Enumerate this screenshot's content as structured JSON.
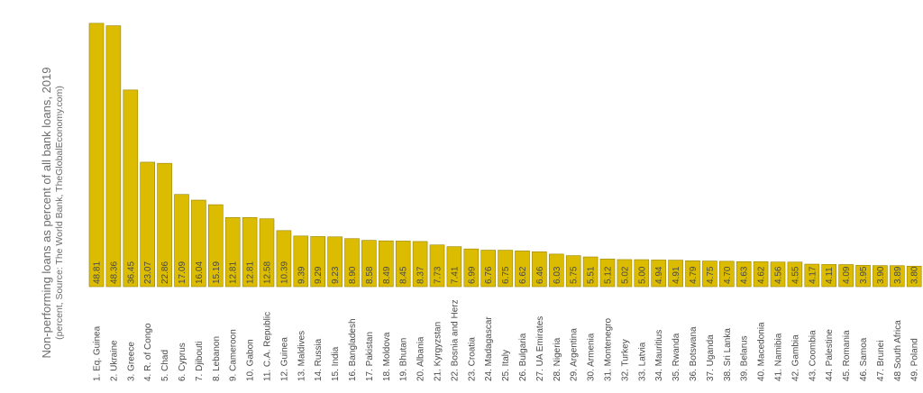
{
  "chart_data": {
    "type": "bar",
    "title": "Non-performing loans as percent of all bank loans, 2019",
    "subtitle": "(percent, Source: The World Bank, TheGlobalEconomy.com)",
    "bar_color": "#dcbc00",
    "bar_edge_color": "#9a8400",
    "ylim": [
      0,
      50
    ],
    "grid": false,
    "categories": [
      "1. Eq. Guinea",
      "2. Ukraine",
      "3. Greece",
      "4. R. of Congo",
      "5. Chad",
      "6. Cyprus",
      "7. Djibouti",
      "8. Lebanon",
      "9. Cameroon",
      "10. Gabon",
      "11. C.A. Republic",
      "12. Guinea",
      "13. Maldives",
      "14. Russia",
      "15. India",
      "16. Bangladesh",
      "17. Pakistan",
      "18. Moldova",
      "19. Bhutan",
      "20. Albania",
      "21. Kyrgyzstan",
      "22. Bosnia  and  Herz",
      "23. Croatia",
      "24. Madagascar",
      "25. Italy",
      "26. Bulgaria",
      "27. UA Emirates",
      "28. Nigeria",
      "29. Argentina",
      "30. Armenia",
      "31. Montenegro",
      "32. Turkey",
      "33. Latvia",
      "34. Mauritius",
      "35. Rwanda",
      "36. Botswana",
      "37. Uganda",
      "38. Sri Lanka",
      "39. Belarus",
      "40. Macedonia",
      "41. Namibia",
      "42. Gambia",
      "43. Coombia",
      "44. Palestine",
      "45. Romania",
      "46. Samoa",
      "47. Brunei",
      "48 South Africa",
      "49. Poland"
    ],
    "values": [
      48.81,
      48.36,
      36.45,
      23.07,
      22.86,
      17.09,
      16.04,
      15.19,
      12.81,
      12.81,
      12.58,
      10.39,
      9.39,
      9.29,
      9.23,
      8.9,
      8.58,
      8.49,
      8.45,
      8.37,
      7.73,
      7.41,
      6.99,
      6.76,
      6.75,
      6.62,
      6.46,
      6.03,
      5.75,
      5.51,
      5.12,
      5.02,
      5.0,
      4.94,
      4.91,
      4.79,
      4.75,
      4.7,
      4.63,
      4.62,
      4.56,
      4.55,
      4.17,
      4.11,
      4.09,
      3.95,
      3.9,
      3.89,
      3.8
    ],
    "value_labels": [
      "48.81",
      "48.36",
      "36.45",
      "23.07",
      "22.86",
      "17.09",
      "16.04",
      "15.19",
      "12.81",
      "12.81",
      "12.58",
      "10.39",
      "9.39",
      "9.29",
      "9.23",
      "8.90",
      "8.58",
      "8.49",
      "8.45",
      "8.37",
      "7.73",
      "7.41",
      "6.99",
      "6.76",
      "6.75",
      "6.62",
      "6.46",
      "6.03",
      "5.75",
      "5.51",
      "5.12",
      "5.02",
      "5.00",
      "4.94",
      "4.91",
      "4.79",
      "4.75",
      "4.70",
      "4.63",
      "4.62",
      "4.56",
      "4.55",
      "4.17",
      "4.11",
      "4.09",
      "3.95",
      "3.90",
      "3.89",
      "3.80"
    ]
  }
}
